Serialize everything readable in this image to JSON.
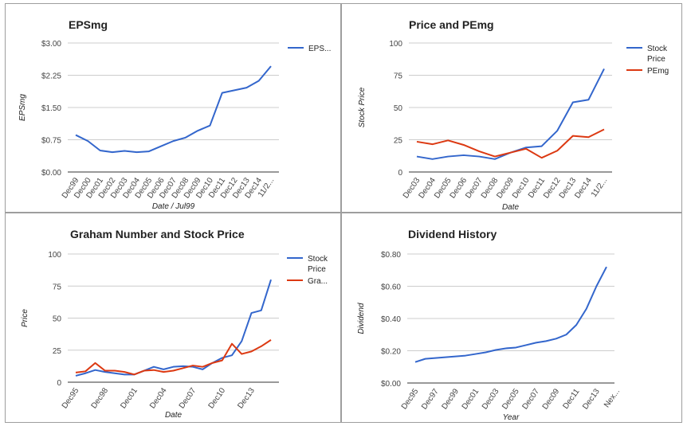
{
  "charts": [
    {
      "type": "line",
      "title": "EPSmg",
      "xlabel": "Date / Jul99",
      "ylabel": "EPSmg",
      "ylim": [
        0,
        3
      ],
      "yticks": [
        "$0.00",
        "$0.75",
        "$1.50",
        "$2.25",
        "$3.00"
      ],
      "ytick_values": [
        0,
        0.75,
        1.5,
        2.25,
        3
      ],
      "xtick_labels": [
        "Dec99",
        "Dec00",
        "Dec01",
        "Dec02",
        "Dec03",
        "Dec04",
        "Dec05",
        "Dec06",
        "Dec07",
        "Dec08",
        "Dec09",
        "Dec10",
        "Dec11",
        "Dec12",
        "Dec13",
        "Dec14",
        "11/2..."
      ],
      "grid": true,
      "legend_position": "right",
      "series": [
        {
          "name": "EPS...",
          "color": "#3366cc",
          "values": [
            0.86,
            0.72,
            0.5,
            0.46,
            0.49,
            0.46,
            0.48,
            0.6,
            0.72,
            0.8,
            0.96,
            1.08,
            1.84,
            1.9,
            1.96,
            2.12,
            2.46
          ]
        }
      ]
    },
    {
      "type": "line",
      "title": "Price and PEmg",
      "xlabel": "Date",
      "ylabel": "Stock Price",
      "ylim": [
        0,
        100
      ],
      "yticks": [
        "0",
        "25",
        "50",
        "75",
        "100"
      ],
      "ytick_values": [
        0,
        25,
        50,
        75,
        100
      ],
      "xtick_labels": [
        "Dec03",
        "Dec04",
        "Dec05",
        "Dec06",
        "Dec07",
        "Dec08",
        "Dec09",
        "Dec10",
        "Dec11",
        "Dec12",
        "Dec13",
        "Dec14",
        "11/2..."
      ],
      "grid": true,
      "legend_position": "right",
      "series": [
        {
          "name": "Stock Price",
          "color": "#3366cc",
          "values": [
            12,
            10,
            12,
            13,
            12,
            10,
            15,
            19,
            20,
            32,
            54,
            56,
            80
          ]
        },
        {
          "name": "PEmg",
          "color": "#dc3912",
          "values": [
            23.5,
            21.5,
            24.5,
            21,
            16,
            12,
            15,
            18,
            11,
            16.5,
            28,
            27,
            33
          ]
        }
      ]
    },
    {
      "type": "line",
      "title": "Graham Number and Stock Price",
      "xlabel": "Date",
      "ylabel": "Price",
      "ylim": [
        0,
        100
      ],
      "yticks": [
        "0",
        "25",
        "50",
        "75",
        "100"
      ],
      "ytick_values": [
        0,
        25,
        50,
        75,
        100
      ],
      "xtick_labels": [
        "Dec95",
        "Dec98",
        "Dec01",
        "Dec04",
        "Dec07",
        "Dec10",
        "Dec13"
      ],
      "xtick_positions": [
        0,
        3,
        6,
        9,
        12,
        15,
        18
      ],
      "grid": true,
      "legend_position": "right",
      "series": [
        {
          "name": "Stock Price",
          "color": "#3366cc",
          "values": [
            5,
            7,
            9.5,
            8,
            7,
            6,
            6,
            9,
            12,
            10,
            12,
            12.5,
            12,
            10,
            15,
            19,
            21,
            32,
            54,
            56,
            80
          ]
        },
        {
          "name": "Gra...",
          "color": "#dc3912",
          "values": [
            7.5,
            8.5,
            15,
            9,
            9,
            8,
            6,
            9,
            9.5,
            8,
            9,
            11,
            13,
            12,
            15,
            17,
            30,
            22,
            24,
            28,
            33
          ]
        }
      ]
    },
    {
      "type": "line",
      "title": "Dividend History",
      "xlabel": "Year",
      "ylabel": "Dividend",
      "ylim": [
        0,
        0.8
      ],
      "yticks": [
        "$0.00",
        "$0.20",
        "$0.40",
        "$0.60",
        "$0.80"
      ],
      "ytick_values": [
        0,
        0.2,
        0.4,
        0.6,
        0.8
      ],
      "xtick_labels": [
        "Dec95",
        "Dec97",
        "Dec99",
        "Dec01",
        "Dec03",
        "Dec05",
        "Dec07",
        "Dec09",
        "Dec11",
        "Dec13",
        "Nex..."
      ],
      "xtick_positions": [
        0,
        2,
        4,
        6,
        8,
        10,
        12,
        14,
        16,
        18,
        20
      ],
      "grid": true,
      "legend_position": "none",
      "series": [
        {
          "name": "",
          "color": "#3366cc",
          "values": [
            0.13,
            0.15,
            0.155,
            0.16,
            0.165,
            0.17,
            0.18,
            0.19,
            0.205,
            0.215,
            0.22,
            0.235,
            0.25,
            0.26,
            0.275,
            0.3,
            0.36,
            0.46,
            0.6,
            0.72
          ]
        }
      ]
    }
  ]
}
